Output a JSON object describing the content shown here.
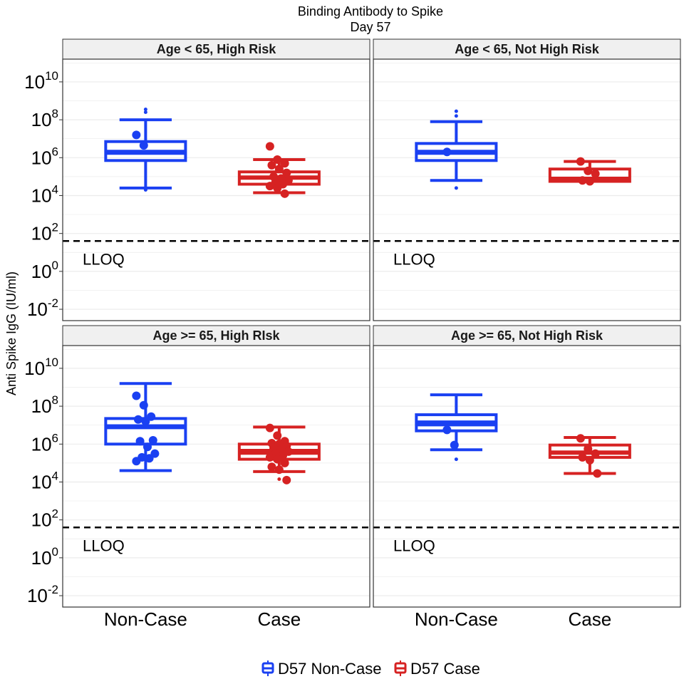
{
  "title_line1": "Binding Antibody to Spike",
  "title_line2": "Day 57",
  "colors": {
    "noncase": "#1A40F2",
    "case": "#D62222",
    "strip_bg": "#F0F0F0",
    "grid": "#EBEBEB"
  },
  "legend": [
    {
      "label": "D57 Non-Case",
      "color": "#1A40F2"
    },
    {
      "label": "D57 Case",
      "color": "#D62222"
    }
  ],
  "chart_data": {
    "type": "boxplot",
    "ylabel": "Anti Spike IgG (IU/ml)",
    "yscale": "log10",
    "ylim_log10": [
      -2.6,
      11.2
    ],
    "y_ticks_log10": [
      -2,
      0,
      2,
      4,
      6,
      8,
      10
    ],
    "y_tick_labels": [
      "10-2",
      "100",
      "102",
      "104",
      "106",
      "108",
      "1010"
    ],
    "categories": [
      "Non-Case",
      "Case"
    ],
    "lloq": {
      "label": "LLOQ",
      "log10": 1.6
    },
    "panels": [
      {
        "strip": "Age < 65, High Risk",
        "boxes": [
          {
            "group": "Non-Case",
            "min": 4.4,
            "q1": 5.85,
            "median": 6.3,
            "q3": 6.85,
            "max": 8.0,
            "mean": 6.2,
            "points": [
              7.2,
              6.65
            ],
            "outliers": [
              8.55,
              8.4,
              4.3
            ]
          },
          {
            "group": "Case",
            "min": 4.15,
            "q1": 4.6,
            "median": 4.95,
            "q3": 5.25,
            "max": 5.9,
            "mean": 4.95,
            "points": [
              6.6,
              5.9,
              5.7,
              5.6,
              5.4,
              5.2,
              5.0,
              4.9,
              4.8,
              4.7,
              4.6,
              4.5,
              4.4,
              4.1
            ],
            "outliers": []
          }
        ]
      },
      {
        "strip": "Age < 65, Not High Risk",
        "boxes": [
          {
            "group": "Non-Case",
            "min": 4.8,
            "q1": 5.85,
            "median": 6.3,
            "q3": 6.75,
            "max": 7.9,
            "mean": 6.2,
            "points": [
              6.3
            ],
            "outliers": [
              8.45,
              8.2,
              4.4
            ]
          },
          {
            "group": "Case",
            "min": 4.75,
            "q1": 4.75,
            "median": 4.85,
            "q3": 5.4,
            "max": 5.8,
            "mean": 4.95,
            "points": [
              5.8,
              5.3,
              5.15,
              4.8,
              4.75
            ],
            "outliers": []
          }
        ]
      },
      {
        "strip": "Age >= 65, High RIsk",
        "boxes": [
          {
            "group": "Non-Case",
            "min": 4.6,
            "q1": 6.0,
            "median": 6.9,
            "q3": 7.35,
            "max": 9.2,
            "mean": 7.0,
            "points": [
              8.55,
              8.05,
              7.45,
              7.3,
              7.2,
              6.2,
              6.15,
              5.85,
              5.5,
              5.3,
              5.25,
              5.1
            ],
            "outliers": []
          },
          {
            "group": "Case",
            "min": 4.55,
            "q1": 5.2,
            "median": 5.55,
            "q3": 6.0,
            "max": 6.9,
            "mean": 5.7,
            "points": [
              6.85,
              6.45,
              6.15,
              6.05,
              6.0,
              5.9,
              5.8,
              5.7,
              5.6,
              5.5,
              5.4,
              5.3,
              5.2,
              5.0,
              4.8,
              4.65,
              4.1
            ],
            "outliers": [
              4.15
            ]
          }
        ]
      },
      {
        "strip": "Age >= 65, Not High Risk",
        "boxes": [
          {
            "group": "Non-Case",
            "min": 5.7,
            "q1": 6.7,
            "median": 7.05,
            "q3": 7.55,
            "max": 8.6,
            "mean": 7.2,
            "points": [
              6.75,
              5.95
            ],
            "outliers": [
              5.2
            ]
          },
          {
            "group": "Case",
            "min": 4.45,
            "q1": 5.3,
            "median": 5.55,
            "q3": 5.95,
            "max": 6.35,
            "mean": 5.6,
            "points": [
              6.3,
              5.75,
              5.5,
              5.3,
              5.15,
              4.45
            ],
            "outliers": []
          }
        ]
      }
    ]
  }
}
